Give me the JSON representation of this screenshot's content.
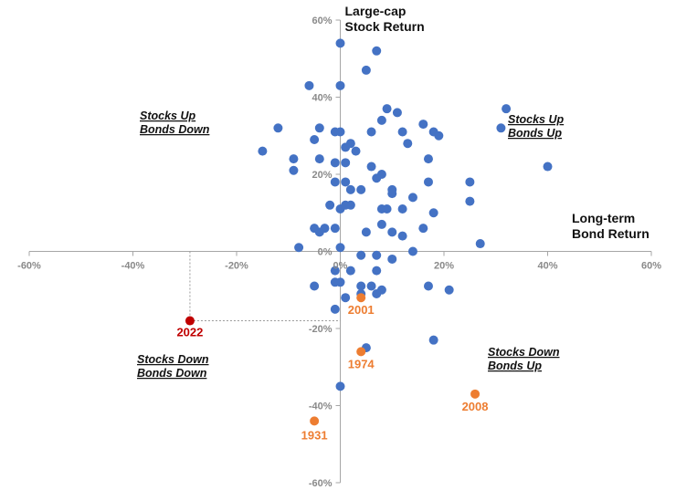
{
  "chart_data": {
    "type": "scatter",
    "x_axis_title": [
      "Long-term",
      "Bond Return"
    ],
    "y_axis_title": [
      "Large-cap",
      "Stock Return"
    ],
    "xlim": [
      -60,
      60
    ],
    "ylim": [
      -60,
      60
    ],
    "x_ticks": [
      "-60%",
      "-40%",
      "-20%",
      "0%",
      "20%",
      "40%",
      "60%"
    ],
    "y_ticks": [
      "60%",
      "40%",
      "20%",
      "0%",
      "-20%",
      "-40%",
      "-60%"
    ],
    "quadrants": {
      "top_left": [
        "Stocks Up",
        "Bonds Down"
      ],
      "top_right": [
        "Stocks Up",
        "Bonds Up"
      ],
      "bottom_left": [
        "Stocks Down",
        "Bonds Down"
      ],
      "bottom_right": [
        "Stocks Down",
        "Bonds Up"
      ]
    },
    "colors": {
      "points": "#4472C4",
      "highlight": "#ED7D31",
      "highlight_2022": "#C00000",
      "axis": "#A6A6A6"
    },
    "points": [
      [
        0,
        54
      ],
      [
        7,
        52
      ],
      [
        5,
        47
      ],
      [
        -6,
        43
      ],
      [
        0,
        43
      ],
      [
        32,
        37
      ],
      [
        9,
        37
      ],
      [
        11,
        36
      ],
      [
        31,
        32
      ],
      [
        -12,
        32
      ],
      [
        -4,
        32
      ],
      [
        -1,
        31
      ],
      [
        0,
        31
      ],
      [
        8,
        34
      ],
      [
        16,
        33
      ],
      [
        12,
        31
      ],
      [
        6,
        31
      ],
      [
        18,
        31
      ],
      [
        19,
        30
      ],
      [
        -15,
        26
      ],
      [
        -5,
        29
      ],
      [
        2,
        28
      ],
      [
        13,
        28
      ],
      [
        1,
        27
      ],
      [
        3,
        26
      ],
      [
        -9,
        24
      ],
      [
        -4,
        24
      ],
      [
        -1,
        23
      ],
      [
        1,
        23
      ],
      [
        6,
        22
      ],
      [
        17,
        24
      ],
      [
        40,
        22
      ],
      [
        -9,
        21
      ],
      [
        8,
        20
      ],
      [
        7,
        19
      ],
      [
        1,
        18
      ],
      [
        -1,
        18
      ],
      [
        4,
        16
      ],
      [
        17,
        18
      ],
      [
        25,
        18
      ],
      [
        10,
        16
      ],
      [
        2,
        16
      ],
      [
        10,
        15
      ],
      [
        14,
        14
      ],
      [
        25,
        13
      ],
      [
        -2,
        12
      ],
      [
        1,
        12
      ],
      [
        2,
        12
      ],
      [
        8,
        11
      ],
      [
        9,
        11
      ],
      [
        0,
        11
      ],
      [
        12,
        11
      ],
      [
        18,
        10
      ],
      [
        -5,
        6
      ],
      [
        -3,
        6
      ],
      [
        -1,
        6
      ],
      [
        8,
        7
      ],
      [
        5,
        5
      ],
      [
        10,
        5
      ],
      [
        16,
        6
      ],
      [
        -4,
        5
      ],
      [
        12,
        4
      ],
      [
        -8,
        1
      ],
      [
        0,
        1
      ],
      [
        14,
        0
      ],
      [
        27,
        2
      ],
      [
        4,
        -1
      ],
      [
        7,
        -1
      ],
      [
        10,
        -2
      ],
      [
        7,
        -5
      ],
      [
        -1,
        -5
      ],
      [
        0,
        -8
      ],
      [
        2,
        -5
      ],
      [
        -1,
        -8
      ],
      [
        4,
        -9
      ],
      [
        6,
        -9
      ],
      [
        17,
        -9
      ],
      [
        21,
        -10
      ],
      [
        8,
        -10
      ],
      [
        7,
        -11
      ],
      [
        -5,
        -9
      ],
      [
        1,
        -12
      ],
      [
        4,
        -11
      ],
      [
        -1,
        -15
      ],
      [
        18,
        -23
      ],
      [
        5,
        -25
      ],
      [
        0,
        -35
      ]
    ],
    "highlighted": [
      {
        "label": "2001",
        "x": 4,
        "y": -12,
        "color": "#ED7D31"
      },
      {
        "label": "1974",
        "x": 4,
        "y": -26,
        "color": "#ED7D31"
      },
      {
        "label": "2008",
        "x": 26,
        "y": -37,
        "color": "#ED7D31"
      },
      {
        "label": "1931",
        "x": -5,
        "y": -44,
        "color": "#ED7D31"
      },
      {
        "label": "2022",
        "x": -29,
        "y": -18,
        "color": "#C00000"
      }
    ]
  }
}
